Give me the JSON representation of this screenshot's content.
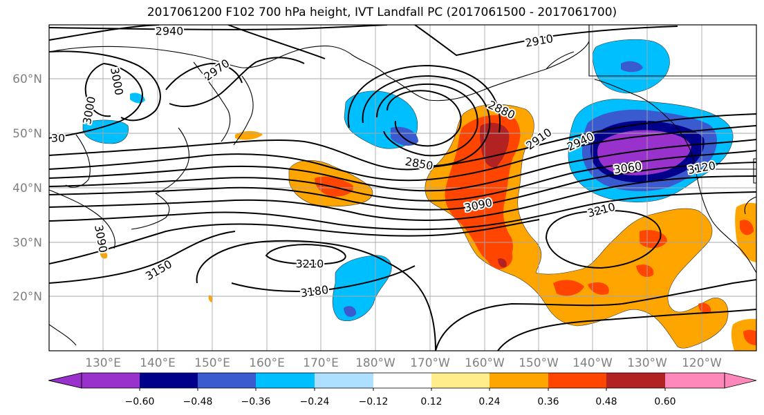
{
  "title": "2017061200 F102 700 hPa height, IVT Landfall PC (2017061500 - 2017061700)",
  "map": {
    "lon_ticks": [
      "130°E",
      "140°E",
      "150°E",
      "160°E",
      "170°E",
      "180°W",
      "170°W",
      "160°W",
      "150°W",
      "140°W",
      "130°W",
      "120°W"
    ],
    "lat_ticks": [
      "60°N",
      "50°N",
      "40°N",
      "30°N",
      "20°N"
    ],
    "contour_labels": [
      "2940",
      "2910",
      "2970",
      "3000",
      "3000",
      "30",
      "2880",
      "2910",
      "2940",
      "2850",
      "3060",
      "3120",
      "3090",
      "3210",
      "3150",
      "3090",
      "3210",
      "3180"
    ]
  },
  "colorbar": {
    "colors": [
      "#9932CC",
      "#00008B",
      "#3A5BCF",
      "#00BFFF",
      "#ADDFFF",
      "#FFFFFF",
      "#FFEC8B",
      "#FFA500",
      "#FF4500",
      "#B22222",
      "#FF88BB"
    ],
    "tick_labels": [
      "−0.60",
      "−0.48",
      "−0.36",
      "−0.24",
      "−0.12",
      "0.12",
      "0.24",
      "0.36",
      "0.48",
      "0.60"
    ]
  }
}
